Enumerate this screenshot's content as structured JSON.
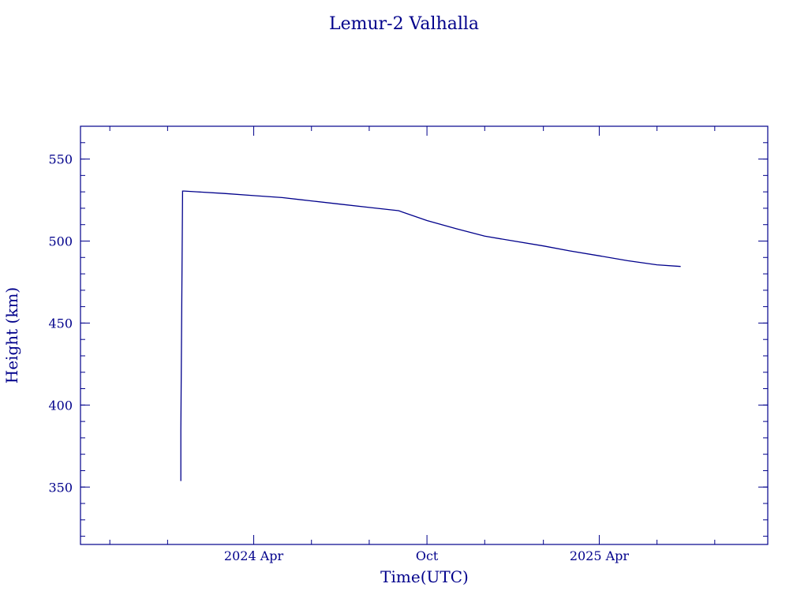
{
  "chart_data": {
    "type": "line",
    "title": "Lemur-2 Valhalla",
    "xlabel": "Time(UTC)",
    "ylabel": "Height (km)",
    "ylim": [
      315,
      570
    ],
    "xlim": [
      "2023-10-01",
      "2025-09-26"
    ],
    "grid": false,
    "color": "#00008b",
    "x_ticks": [
      {
        "date": "2024-04-01",
        "label": "2024 Apr"
      },
      {
        "date": "2024-10-01",
        "label": "Oct"
      },
      {
        "date": "2025-04-01",
        "label": "2025 Apr"
      }
    ],
    "x_minor_ticks": [
      "2023-11-01",
      "2024-01-01",
      "2024-06-01",
      "2024-08-01",
      "2024-12-01",
      "2025-02-01",
      "2025-06-01",
      "2025-08-01"
    ],
    "y_ticks": [
      350,
      400,
      450,
      500,
      550
    ],
    "y_minor_step": 10,
    "series": [
      {
        "x": [
          "2024-01-15",
          "2024-01-15",
          "2024-01-15",
          "2024-01-16",
          "2024-01-16",
          "2024-02-01",
          "2024-03-01",
          "2024-04-01",
          "2024-05-01",
          "2024-06-01",
          "2024-07-01",
          "2024-08-01",
          "2024-09-01",
          "2024-10-01",
          "2024-11-01",
          "2024-12-01",
          "2025-01-01",
          "2025-02-01",
          "2025-03-01",
          "2025-04-01",
          "2025-05-01",
          "2025-06-01",
          "2025-06-26"
        ],
        "y": [
          353.7,
          385,
          385,
          530.5,
          530.5,
          530,
          529,
          527.7,
          526.5,
          524.5,
          522.5,
          520.5,
          518.5,
          512.5,
          507.5,
          503,
          500,
          497,
          494,
          491,
          488,
          485.5,
          484.5
        ]
      }
    ]
  }
}
